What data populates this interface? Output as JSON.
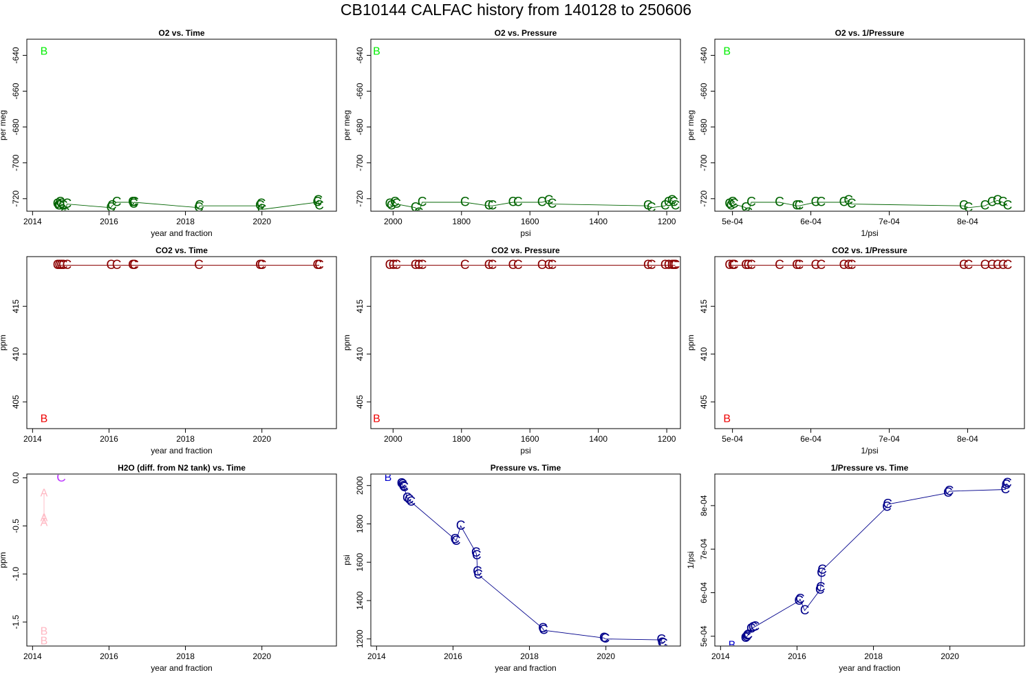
{
  "page": {
    "title": "CB10144   CALFAC history from  140128  to  250606"
  },
  "colors": {
    "o2": "#006400",
    "co2": "#8b0000",
    "pressure": "#00008b",
    "b_o2": "#00ee00",
    "b_co2": "#ee0000",
    "b_pressure": "#0000cd",
    "h2o_c": "#bf3eff",
    "h2o_ab": "#ffb6c1"
  },
  "chart_data": [
    {
      "id": "o2_time",
      "type": "scatter",
      "title": "O2 vs. Time",
      "xlabel": "year and fraction",
      "ylabel": "per meg",
      "xlim": [
        2013.85,
        2021.95
      ],
      "ylim": [
        -727,
        -631
      ],
      "xreverse": false,
      "xticks": [
        2014,
        2016,
        2018,
        2020
      ],
      "xtick_labels": [
        "2014",
        "2016",
        "2018",
        "2020"
      ],
      "yticks": [
        -640,
        -660,
        -680,
        -700,
        -720
      ],
      "ytick_labels": [
        "-640",
        "-660",
        "-680",
        "-700",
        "-720"
      ],
      "series": [
        {
          "name": "C",
          "marker": "C",
          "color": "#006400",
          "line": true,
          "x": [
            2014.65,
            2014.68,
            2014.7,
            2014.72,
            2014.75,
            2014.8,
            2014.85,
            2014.9,
            2016.05,
            2016.08,
            2016.2,
            2016.62,
            2016.64,
            2016.66,
            2018.35,
            2018.37,
            2019.95,
            2019.98,
            2020.0,
            2021.45,
            2021.47,
            2021.5
          ],
          "y": [
            -723,
            -724,
            -724,
            -722,
            -723,
            -724,
            -728,
            -723,
            -725,
            -724,
            -722,
            -722,
            -723,
            -722,
            -725,
            -724,
            -724,
            -723,
            -726,
            -722,
            -721,
            -724
          ]
        }
      ],
      "annotations": [
        {
          "label": "B",
          "color": "#00ee00",
          "x": 2014.3,
          "y": -638
        }
      ]
    },
    {
      "id": "o2_pressure",
      "type": "scatter",
      "title": "O2 vs. Pressure",
      "xlabel": "psi",
      "ylabel": "per meg",
      "xlim": [
        2065,
        1160
      ],
      "ylim": [
        -727,
        -631
      ],
      "xreverse": true,
      "xticks": [
        2000,
        1800,
        1600,
        1400,
        1200
      ],
      "xtick_labels": [
        "2000",
        "1800",
        "1600",
        "1400",
        "1200"
      ],
      "yticks": [
        -640,
        -660,
        -680,
        -700,
        -720
      ],
      "ytick_labels": [
        "-640",
        "-660",
        "-680",
        "-700",
        "-720"
      ],
      "series": [
        {
          "name": "C",
          "marker": "C",
          "color": "#006400",
          "line": true,
          "x": [
            2010,
            2005,
            1995,
            1990,
            1935,
            1925,
            1915,
            1790,
            1720,
            1710,
            1650,
            1635,
            1565,
            1545,
            1535,
            1255,
            1245,
            1205,
            1195,
            1185,
            1180,
            1175
          ],
          "y": [
            -723,
            -724,
            -722,
            -723,
            -725,
            -728,
            -722,
            -722,
            -724,
            -724,
            -722,
            -722,
            -722,
            -721,
            -723,
            -724,
            -725,
            -724,
            -722,
            -721,
            -722,
            -724
          ]
        }
      ],
      "annotations": [
        {
          "label": "B",
          "color": "#00ee00",
          "x": 2048,
          "y": -638
        }
      ]
    },
    {
      "id": "o2_invpressure",
      "type": "scatter",
      "title": "O2 vs. 1/Pressure",
      "xlabel": "1/psi",
      "ylabel": "per meg",
      "xlim": [
        0.0004775,
        0.0008725
      ],
      "ylim": [
        -727,
        -631
      ],
      "xreverse": false,
      "xticks": [
        0.0005,
        0.0006,
        0.0007,
        0.0008
      ],
      "xtick_labels": [
        "5e-04",
        "6e-04",
        "7e-04",
        "8e-04"
      ],
      "yticks": [
        -640,
        -660,
        -680,
        -700,
        -720
      ],
      "ytick_labels": [
        "-640",
        "-660",
        "-680",
        "-700",
        "-720"
      ],
      "series": [
        {
          "name": "C",
          "marker": "C",
          "color": "#006400",
          "line": true,
          "x": [
            0.000496,
            0.000498,
            0.0005,
            0.000502,
            0.000517,
            0.00052,
            0.000524,
            0.00056,
            0.000582,
            0.000585,
            0.000606,
            0.000613,
            0.000642,
            0.000648,
            0.000652,
            0.000795,
            0.000801,
            0.000822,
            0.000831,
            0.000838,
            0.000845,
            0.000851
          ],
          "y": [
            -723,
            -724,
            -722,
            -723,
            -725,
            -728,
            -722,
            -722,
            -724,
            -724,
            -722,
            -722,
            -722,
            -721,
            -723,
            -724,
            -725,
            -724,
            -722,
            -721,
            -722,
            -724
          ]
        }
      ],
      "annotations": [
        {
          "label": "B",
          "color": "#00ee00",
          "x": 0.000493,
          "y": -638
        }
      ]
    },
    {
      "id": "co2_time",
      "type": "scatter",
      "title": "CO2 vs. Time",
      "xlabel": "year and fraction",
      "ylabel": "ppm",
      "xlim": [
        2013.85,
        2021.95
      ],
      "ylim": [
        402.2,
        420.2
      ],
      "xreverse": false,
      "xticks": [
        2014,
        2016,
        2018,
        2020
      ],
      "xtick_labels": [
        "2014",
        "2016",
        "2018",
        "2020"
      ],
      "yticks": [
        405,
        410,
        415
      ],
      "ytick_labels": [
        "405",
        "410",
        "415"
      ],
      "series": [
        {
          "name": "C",
          "marker": "C",
          "color": "#8b0000",
          "line": true,
          "x": [
            2014.65,
            2014.7,
            2014.75,
            2014.8,
            2014.9,
            2016.05,
            2016.2,
            2016.62,
            2016.66,
            2018.35,
            2019.95,
            2020.0,
            2021.45,
            2021.5
          ],
          "y": [
            419.3,
            419.3,
            419.3,
            419.3,
            419.3,
            419.3,
            419.3,
            419.3,
            419.3,
            419.3,
            419.3,
            419.3,
            419.3,
            419.3
          ]
        }
      ],
      "annotations": [
        {
          "label": "B",
          "color": "#ee0000",
          "x": 2014.3,
          "y": 403.2
        }
      ]
    },
    {
      "id": "co2_pressure",
      "type": "scatter",
      "title": "CO2 vs. Pressure",
      "xlabel": "psi",
      "ylabel": "ppm",
      "xlim": [
        2065,
        1160
      ],
      "ylim": [
        402.2,
        420.2
      ],
      "xreverse": true,
      "xticks": [
        2000,
        1800,
        1600,
        1400,
        1200
      ],
      "xtick_labels": [
        "2000",
        "1800",
        "1600",
        "1400",
        "1200"
      ],
      "yticks": [
        405,
        410,
        415
      ],
      "ytick_labels": [
        "405",
        "410",
        "415"
      ],
      "series": [
        {
          "name": "C",
          "marker": "C",
          "color": "#8b0000",
          "line": true,
          "x": [
            2010,
            2000,
            1990,
            1935,
            1925,
            1915,
            1790,
            1720,
            1710,
            1650,
            1635,
            1565,
            1545,
            1535,
            1255,
            1245,
            1205,
            1195,
            1185,
            1180,
            1175
          ],
          "y": [
            419.3,
            419.3,
            419.3,
            419.3,
            419.3,
            419.3,
            419.3,
            419.3,
            419.3,
            419.3,
            419.3,
            419.3,
            419.3,
            419.3,
            419.3,
            419.3,
            419.3,
            419.3,
            419.3,
            419.3,
            419.3
          ]
        }
      ],
      "annotations": [
        {
          "label": "B",
          "color": "#ee0000",
          "x": 2048,
          "y": 403.2
        }
      ]
    },
    {
      "id": "co2_invpressure",
      "type": "scatter",
      "title": "CO2 vs. 1/Pressure",
      "xlabel": "1/psi",
      "ylabel": "ppm",
      "xlim": [
        0.0004775,
        0.0008725
      ],
      "ylim": [
        402.2,
        420.2
      ],
      "xreverse": false,
      "xticks": [
        0.0005,
        0.0006,
        0.0007,
        0.0008
      ],
      "xtick_labels": [
        "5e-04",
        "6e-04",
        "7e-04",
        "8e-04"
      ],
      "yticks": [
        405,
        410,
        415
      ],
      "ytick_labels": [
        "405",
        "410",
        "415"
      ],
      "series": [
        {
          "name": "C",
          "marker": "C",
          "color": "#8b0000",
          "line": true,
          "x": [
            0.000496,
            0.0005,
            0.000502,
            0.000517,
            0.00052,
            0.000524,
            0.00056,
            0.000582,
            0.000585,
            0.000606,
            0.000613,
            0.000642,
            0.000648,
            0.000652,
            0.000795,
            0.000801,
            0.000822,
            0.000831,
            0.000838,
            0.000845,
            0.000851
          ],
          "y": [
            419.3,
            419.3,
            419.3,
            419.3,
            419.3,
            419.3,
            419.3,
            419.3,
            419.3,
            419.3,
            419.3,
            419.3,
            419.3,
            419.3,
            419.3,
            419.3,
            419.3,
            419.3,
            419.3,
            419.3,
            419.3
          ]
        }
      ],
      "annotations": [
        {
          "label": "B",
          "color": "#ee0000",
          "x": 0.000493,
          "y": 403.2
        }
      ]
    },
    {
      "id": "h2o_time",
      "type": "scatter",
      "title": "H2O (diff. from N2 tank) vs. Time",
      "xlabel": "year and fraction",
      "ylabel": "ppm",
      "xlim": [
        2013.85,
        2021.95
      ],
      "ylim": [
        -1.75,
        0.04
      ],
      "xreverse": false,
      "xticks": [
        2014,
        2016,
        2018,
        2020
      ],
      "xtick_labels": [
        "2014",
        "2016",
        "2018",
        "2020"
      ],
      "yticks": [
        0,
        -0.5,
        -1,
        -1.5
      ],
      "ytick_labels": [
        "0.0",
        "-0.5",
        "-1.0",
        "-1.5"
      ],
      "series": [
        {
          "name": "A",
          "marker": "A",
          "color": "#ffb6c1",
          "line": true,
          "x": [
            2014.3,
            2014.3,
            2014.3
          ],
          "y": [
            -0.16,
            -0.42,
            -0.47
          ]
        },
        {
          "name": "B",
          "marker": "B",
          "color": "#ffb6c1",
          "line": false,
          "x": [
            2014.3,
            2014.3
          ],
          "y": [
            -1.6,
            -1.7
          ]
        },
        {
          "name": "C",
          "marker": "C",
          "color": "#bf3eff",
          "line": false,
          "x": [
            2014.75
          ],
          "y": [
            0.0
          ]
        }
      ],
      "annotations": []
    },
    {
      "id": "pressure_time",
      "type": "scatter",
      "title": "Pressure vs. Time",
      "xlabel": "year and fraction",
      "ylabel": "psi",
      "xlim": [
        2013.85,
        2021.95
      ],
      "ylim": [
        1163,
        2060
      ],
      "xreverse": false,
      "xticks": [
        2014,
        2016,
        2018,
        2020
      ],
      "xtick_labels": [
        "2014",
        "2016",
        "2018",
        "2020"
      ],
      "yticks": [
        1200,
        1400,
        1600,
        1800,
        2000
      ],
      "ytick_labels": [
        "1200",
        "1400",
        "1600",
        "1800",
        "2000"
      ],
      "series": [
        {
          "name": "C",
          "marker": "C",
          "color": "#00008b",
          "line": true,
          "x": [
            2014.65,
            2014.68,
            2014.7,
            2014.72,
            2014.8,
            2014.85,
            2014.9,
            2016.05,
            2016.08,
            2016.2,
            2016.6,
            2016.62,
            2016.64,
            2016.66,
            2018.35,
            2018.37,
            2019.95,
            2019.98,
            2021.45,
            2021.47,
            2021.5
          ],
          "y": [
            2010,
            2005,
            1995,
            1990,
            1935,
            1925,
            1915,
            1720,
            1710,
            1790,
            1650,
            1635,
            1550,
            1535,
            1255,
            1245,
            1205,
            1200,
            1195,
            1180,
            1175
          ]
        }
      ],
      "annotations": [
        {
          "label": "B",
          "color": "#0000cd",
          "x": 2014.3,
          "y": 2040
        }
      ]
    },
    {
      "id": "invpressure_time",
      "type": "scatter",
      "title": "1/Pressure vs. Time",
      "xlabel": "year and fraction",
      "ylabel": "1/psi",
      "xlim": [
        2013.85,
        2021.95
      ],
      "ylim": [
        0.0004775,
        0.0008725
      ],
      "xreverse": false,
      "xticks": [
        2014,
        2016,
        2018,
        2020
      ],
      "xtick_labels": [
        "2014",
        "2016",
        "2018",
        "2020"
      ],
      "yticks": [
        0.0005,
        0.0006,
        0.0007,
        0.0008
      ],
      "ytick_labels": [
        "5e-04",
        "6e-04",
        "7e-04",
        "8e-04"
      ],
      "series": [
        {
          "name": "C",
          "marker": "C",
          "color": "#00008b",
          "line": true,
          "x": [
            2014.65,
            2014.68,
            2014.7,
            2014.72,
            2014.8,
            2014.85,
            2014.9,
            2016.05,
            2016.08,
            2016.2,
            2016.6,
            2016.62,
            2016.64,
            2016.66,
            2018.35,
            2018.37,
            2019.95,
            2019.98,
            2021.45,
            2021.47,
            2021.5
          ],
          "y": [
            0.000496,
            0.000498,
            0.000501,
            0.000503,
            0.000517,
            0.00052,
            0.000522,
            0.000581,
            0.000585,
            0.000559,
            0.000606,
            0.000612,
            0.000645,
            0.000652,
            0.000797,
            0.000803,
            0.000829,
            0.000833,
            0.000837,
            0.000847,
            0.000851
          ]
        }
      ],
      "annotations": [
        {
          "label": "B",
          "color": "#0000cd",
          "x": 2014.3,
          "y": 0.000479
        }
      ]
    }
  ]
}
